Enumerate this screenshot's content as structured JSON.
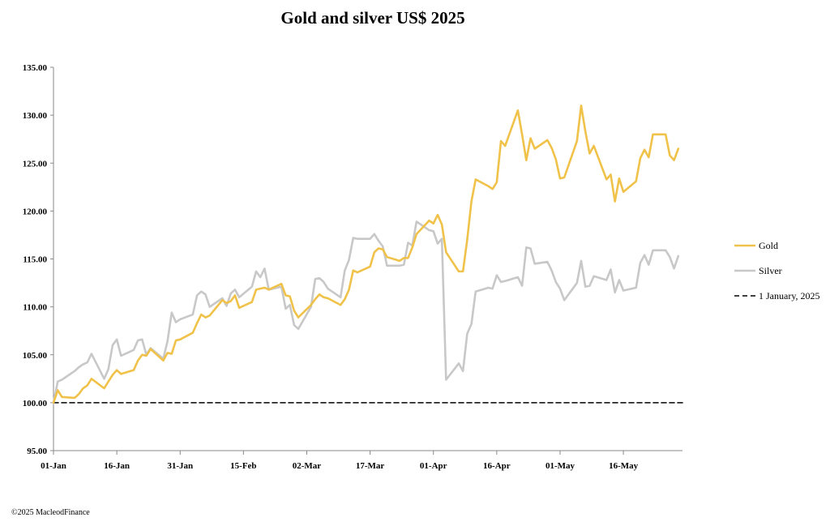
{
  "chart_data": {
    "type": "line",
    "title": "Gold and silver  US$ 2025",
    "xlabel": "",
    "ylabel": "",
    "ylim": [
      95,
      135
    ],
    "yticks": [
      "95.00",
      "100.00",
      "105.00",
      "110.00",
      "115.00",
      "120.00",
      "125.00",
      "130.00",
      "135.00"
    ],
    "x_start": "2025-01-01",
    "x_end": "2025-05-30",
    "xticks": [
      {
        "label": "01-Jan",
        "date": "2025-01-01"
      },
      {
        "label": "16-Jan",
        "date": "2025-01-16"
      },
      {
        "label": "31-Jan",
        "date": "2025-01-31"
      },
      {
        "label": "15-Feb",
        "date": "2025-02-15"
      },
      {
        "label": "02-Mar",
        "date": "2025-03-02"
      },
      {
        "label": "17-Mar",
        "date": "2025-03-17"
      },
      {
        "label": "01-Apr",
        "date": "2025-04-01"
      },
      {
        "label": "16-Apr",
        "date": "2025-04-16"
      },
      {
        "label": "01-May",
        "date": "2025-05-01"
      },
      {
        "label": "16-May",
        "date": "2025-05-16"
      }
    ],
    "legend_position": "right",
    "series": [
      {
        "name": "Gold",
        "color": "#f0c24a",
        "style": "solid",
        "points": [
          [
            "2025-01-01",
            100
          ],
          [
            "2025-01-02",
            101.3
          ],
          [
            "2025-01-03",
            100.6
          ],
          [
            "2025-01-06",
            100.5
          ],
          [
            "2025-01-07",
            100.9
          ],
          [
            "2025-01-08",
            101.5
          ],
          [
            "2025-01-09",
            101.8
          ],
          [
            "2025-01-10",
            102.5
          ],
          [
            "2025-01-13",
            101.5
          ],
          [
            "2025-01-14",
            102.2
          ],
          [
            "2025-01-15",
            102.9
          ],
          [
            "2025-01-16",
            103.4
          ],
          [
            "2025-01-17",
            103.0
          ],
          [
            "2025-01-20",
            103.4
          ],
          [
            "2025-01-21",
            104.4
          ],
          [
            "2025-01-22",
            105.0
          ],
          [
            "2025-01-23",
            104.9
          ],
          [
            "2025-01-24",
            105.6
          ],
          [
            "2025-01-27",
            104.4
          ],
          [
            "2025-01-28",
            105.2
          ],
          [
            "2025-01-29",
            105.1
          ],
          [
            "2025-01-30",
            106.5
          ],
          [
            "2025-01-31",
            106.6
          ],
          [
            "2025-02-03",
            107.3
          ],
          [
            "2025-02-04",
            108.3
          ],
          [
            "2025-02-05",
            109.2
          ],
          [
            "2025-02-06",
            108.9
          ],
          [
            "2025-02-07",
            109.1
          ],
          [
            "2025-02-10",
            110.7
          ],
          [
            "2025-02-11",
            110.4
          ],
          [
            "2025-02-12",
            110.6
          ],
          [
            "2025-02-13",
            111.2
          ],
          [
            "2025-02-14",
            109.9
          ],
          [
            "2025-02-17",
            110.5
          ],
          [
            "2025-02-18",
            111.8
          ],
          [
            "2025-02-19",
            111.9
          ],
          [
            "2025-02-20",
            112.0
          ],
          [
            "2025-02-21",
            111.8
          ],
          [
            "2025-02-24",
            112.4
          ],
          [
            "2025-02-25",
            111.2
          ],
          [
            "2025-02-26",
            111.1
          ],
          [
            "2025-02-27",
            109.6
          ],
          [
            "2025-02-28",
            108.9
          ],
          [
            "2025-03-03",
            110.2
          ],
          [
            "2025-03-04",
            110.8
          ],
          [
            "2025-03-05",
            111.3
          ],
          [
            "2025-03-06",
            111.0
          ],
          [
            "2025-03-07",
            110.9
          ],
          [
            "2025-03-10",
            110.2
          ],
          [
            "2025-03-11",
            110.8
          ],
          [
            "2025-03-12",
            111.8
          ],
          [
            "2025-03-13",
            113.8
          ],
          [
            "2025-03-14",
            113.6
          ],
          [
            "2025-03-17",
            114.2
          ],
          [
            "2025-03-18",
            115.7
          ],
          [
            "2025-03-19",
            116.1
          ],
          [
            "2025-03-20",
            116.0
          ],
          [
            "2025-03-21",
            115.2
          ],
          [
            "2025-03-24",
            114.8
          ],
          [
            "2025-03-25",
            115.1
          ],
          [
            "2025-03-26",
            115.1
          ],
          [
            "2025-03-27",
            116.2
          ],
          [
            "2025-03-28",
            117.6
          ],
          [
            "2025-03-31",
            119.0
          ],
          [
            "2025-04-01",
            118.7
          ],
          [
            "2025-04-02",
            119.6
          ],
          [
            "2025-04-03",
            118.6
          ],
          [
            "2025-04-04",
            115.7
          ],
          [
            "2025-04-07",
            113.7
          ],
          [
            "2025-04-08",
            113.7
          ],
          [
            "2025-04-09",
            117.0
          ],
          [
            "2025-04-10",
            121.0
          ],
          [
            "2025-04-11",
            123.3
          ],
          [
            "2025-04-14",
            122.6
          ],
          [
            "2025-04-15",
            122.3
          ],
          [
            "2025-04-16",
            123.0
          ],
          [
            "2025-04-17",
            127.3
          ],
          [
            "2025-04-18",
            126.8
          ],
          [
            "2025-04-21",
            130.5
          ],
          [
            "2025-04-22",
            128.0
          ],
          [
            "2025-04-23",
            125.3
          ],
          [
            "2025-04-24",
            127.6
          ],
          [
            "2025-04-25",
            126.5
          ],
          [
            "2025-04-28",
            127.4
          ],
          [
            "2025-04-29",
            126.6
          ],
          [
            "2025-04-30",
            125.4
          ],
          [
            "2025-05-01",
            123.4
          ],
          [
            "2025-05-02",
            123.5
          ],
          [
            "2025-05-05",
            127.3
          ],
          [
            "2025-05-06",
            131.0
          ],
          [
            "2025-05-07",
            128.3
          ],
          [
            "2025-05-08",
            126.0
          ],
          [
            "2025-05-09",
            126.8
          ],
          [
            "2025-05-12",
            123.3
          ],
          [
            "2025-05-13",
            123.8
          ],
          [
            "2025-05-14",
            121.0
          ],
          [
            "2025-05-15",
            123.4
          ],
          [
            "2025-05-16",
            122.0
          ],
          [
            "2025-05-19",
            123.1
          ],
          [
            "2025-05-20",
            125.5
          ],
          [
            "2025-05-21",
            126.4
          ],
          [
            "2025-05-22",
            125.6
          ],
          [
            "2025-05-23",
            128.0
          ],
          [
            "2025-05-26",
            128.0
          ],
          [
            "2025-05-27",
            125.8
          ],
          [
            "2025-05-28",
            125.3
          ],
          [
            "2025-05-29",
            126.5
          ]
        ]
      },
      {
        "name": "Silver",
        "color": "#c8c8c8",
        "style": "solid",
        "points": [
          [
            "2025-01-01",
            100
          ],
          [
            "2025-01-02",
            102.2
          ],
          [
            "2025-01-03",
            102.4
          ],
          [
            "2025-01-06",
            103.3
          ],
          [
            "2025-01-07",
            103.7
          ],
          [
            "2025-01-08",
            104.0
          ],
          [
            "2025-01-09",
            104.2
          ],
          [
            "2025-01-10",
            105.1
          ],
          [
            "2025-01-13",
            102.5
          ],
          [
            "2025-01-14",
            103.5
          ],
          [
            "2025-01-15",
            106.0
          ],
          [
            "2025-01-16",
            106.6
          ],
          [
            "2025-01-17",
            104.9
          ],
          [
            "2025-01-20",
            105.5
          ],
          [
            "2025-01-21",
            106.5
          ],
          [
            "2025-01-22",
            106.6
          ],
          [
            "2025-01-23",
            105.0
          ],
          [
            "2025-01-24",
            105.7
          ],
          [
            "2025-01-27",
            104.6
          ],
          [
            "2025-01-28",
            106.4
          ],
          [
            "2025-01-29",
            109.4
          ],
          [
            "2025-01-30",
            108.4
          ],
          [
            "2025-01-31",
            108.7
          ],
          [
            "2025-02-03",
            109.2
          ],
          [
            "2025-02-04",
            111.2
          ],
          [
            "2025-02-05",
            111.6
          ],
          [
            "2025-02-06",
            111.3
          ],
          [
            "2025-02-07",
            110.0
          ],
          [
            "2025-02-10",
            110.9
          ],
          [
            "2025-02-11",
            110.1
          ],
          [
            "2025-02-12",
            111.4
          ],
          [
            "2025-02-13",
            111.8
          ],
          [
            "2025-02-14",
            111.0
          ],
          [
            "2025-02-17",
            112.1
          ],
          [
            "2025-02-18",
            113.7
          ],
          [
            "2025-02-19",
            113.1
          ],
          [
            "2025-02-20",
            114.0
          ],
          [
            "2025-02-21",
            111.8
          ],
          [
            "2025-02-24",
            112.1
          ],
          [
            "2025-02-25",
            109.8
          ],
          [
            "2025-02-26",
            110.2
          ],
          [
            "2025-02-27",
            108.1
          ],
          [
            "2025-02-28",
            107.7
          ],
          [
            "2025-03-03",
            110.0
          ],
          [
            "2025-03-04",
            112.9
          ],
          [
            "2025-03-05",
            113.0
          ],
          [
            "2025-03-06",
            112.6
          ],
          [
            "2025-03-07",
            111.9
          ],
          [
            "2025-03-10",
            111.0
          ],
          [
            "2025-03-11",
            113.8
          ],
          [
            "2025-03-12",
            114.9
          ],
          [
            "2025-03-13",
            117.2
          ],
          [
            "2025-03-14",
            117.1
          ],
          [
            "2025-03-17",
            117.1
          ],
          [
            "2025-03-18",
            117.6
          ],
          [
            "2025-03-19",
            116.9
          ],
          [
            "2025-03-20",
            116.3
          ],
          [
            "2025-03-21",
            114.3
          ],
          [
            "2025-03-24",
            114.3
          ],
          [
            "2025-03-25",
            114.4
          ],
          [
            "2025-03-26",
            116.7
          ],
          [
            "2025-03-27",
            116.4
          ],
          [
            "2025-03-28",
            118.9
          ],
          [
            "2025-03-31",
            118.0
          ],
          [
            "2025-04-01",
            117.9
          ],
          [
            "2025-04-02",
            116.6
          ],
          [
            "2025-04-03",
            117.1
          ],
          [
            "2025-04-04",
            102.4
          ],
          [
            "2025-04-07",
            104.1
          ],
          [
            "2025-04-08",
            103.3
          ],
          [
            "2025-04-09",
            107.2
          ],
          [
            "2025-04-10",
            108.2
          ],
          [
            "2025-04-11",
            111.6
          ],
          [
            "2025-04-14",
            112.0
          ],
          [
            "2025-04-15",
            111.9
          ],
          [
            "2025-04-16",
            113.3
          ],
          [
            "2025-04-17",
            112.6
          ],
          [
            "2025-04-18",
            112.7
          ],
          [
            "2025-04-21",
            113.1
          ],
          [
            "2025-04-22",
            112.2
          ],
          [
            "2025-04-23",
            116.2
          ],
          [
            "2025-04-24",
            116.1
          ],
          [
            "2025-04-25",
            114.5
          ],
          [
            "2025-04-28",
            114.7
          ],
          [
            "2025-04-29",
            113.8
          ],
          [
            "2025-04-30",
            112.6
          ],
          [
            "2025-05-01",
            111.9
          ],
          [
            "2025-05-02",
            110.7
          ],
          [
            "2025-05-05",
            112.5
          ],
          [
            "2025-05-06",
            114.8
          ],
          [
            "2025-05-07",
            112.1
          ],
          [
            "2025-05-08",
            112.2
          ],
          [
            "2025-05-09",
            113.2
          ],
          [
            "2025-05-12",
            112.8
          ],
          [
            "2025-05-13",
            113.9
          ],
          [
            "2025-05-14",
            111.5
          ],
          [
            "2025-05-15",
            112.8
          ],
          [
            "2025-05-16",
            111.7
          ],
          [
            "2025-05-19",
            112.0
          ],
          [
            "2025-05-20",
            114.6
          ],
          [
            "2025-05-21",
            115.4
          ],
          [
            "2025-05-22",
            114.4
          ],
          [
            "2025-05-23",
            115.9
          ],
          [
            "2025-05-26",
            115.9
          ],
          [
            "2025-05-27",
            115.2
          ],
          [
            "2025-05-28",
            114.0
          ],
          [
            "2025-05-29",
            115.3
          ]
        ]
      },
      {
        "name": "1 January, 2025",
        "color": "#000000",
        "style": "dashed",
        "points": [
          [
            "2025-01-01",
            100
          ],
          [
            "2025-05-30",
            100
          ]
        ]
      }
    ]
  },
  "footer": {
    "copyright": "©2025 MacleodFinance"
  }
}
